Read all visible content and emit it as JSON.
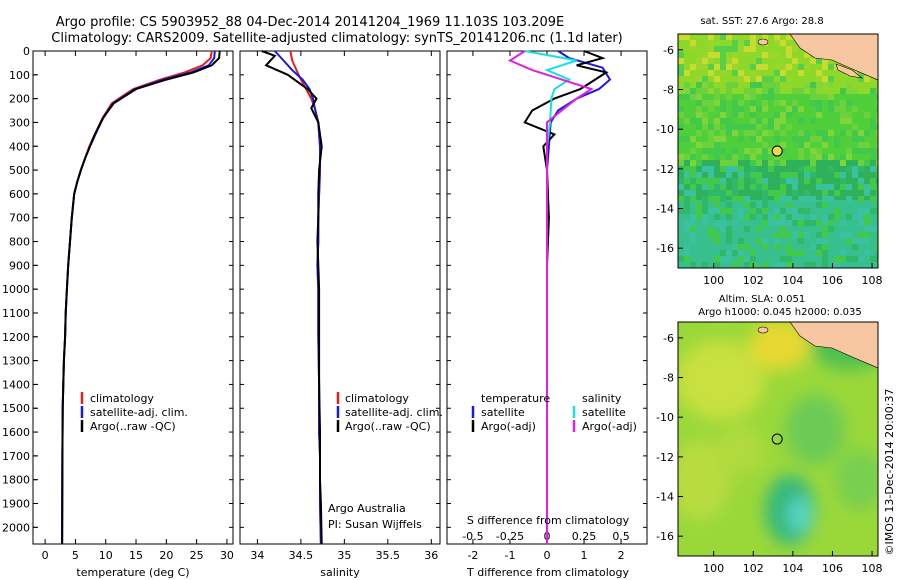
{
  "header": {
    "line1": "Argo profile: CS 5903952_88 04-Dec-2014 20141204_1969 11.103S 103.209E",
    "line2": "Climatology: CARS2009. Satellite-adjusted climatology: synTS_20141206.nc (1.1d later)"
  },
  "colors": {
    "climatology": "#e02020",
    "satellite": "#1a1adb",
    "argo": "#000000",
    "satellite_salinity": "#19e0e0",
    "argo_salinity": "#e020e0"
  },
  "depth_axis": {
    "ticks": [
      "0",
      "100",
      "200",
      "300",
      "400",
      "500",
      "600",
      "700",
      "800",
      "900",
      "1000",
      "1100",
      "1200",
      "1300",
      "1400",
      "1500",
      "1600",
      "1700",
      "1800",
      "1900",
      "2000"
    ],
    "range": [
      0,
      2070
    ]
  },
  "panels": {
    "temperature": {
      "xlabel": "temperature (deg C)",
      "xticks": [
        "0",
        "5",
        "10",
        "15",
        "20",
        "25",
        "30"
      ],
      "legend": [
        "climatology",
        "satellite-adj. clim.",
        "Argo(..raw -QC)"
      ]
    },
    "salinity": {
      "xlabel": "salinity",
      "xticks": [
        "34",
        "34.5",
        "35",
        "35.5",
        "36"
      ],
      "legend": [
        "climatology",
        "satellite-adj. clim.",
        "Argo(..raw -QC)"
      ],
      "note1": "Argo Australia",
      "note2": "PI: Susan Wijffels"
    },
    "difference": {
      "top_label": "S difference from climatology",
      "top_ticks": [
        "-0.5",
        "-0.25",
        "0",
        "0.25",
        "0.5"
      ],
      "xlabel": "T difference from climatology",
      "xticks": [
        "-2",
        "-1",
        "0",
        "1",
        "2"
      ],
      "legend_temp_title": "temperature",
      "legend_sal_title": "salinity",
      "legend_satellite": "satellite",
      "legend_argo": "Argo(-adj)"
    }
  },
  "maps": {
    "sst": {
      "title": "sat. SST: 27.6 Argo: 28.8",
      "yticks": [
        "-6",
        "-8",
        "-10",
        "-12",
        "-14",
        "-16"
      ],
      "xticks": [
        "100",
        "102",
        "104",
        "106",
        "108"
      ]
    },
    "sla": {
      "title1": "Altim. SLA: 0.051",
      "title2": "Argo h1000: 0.045 h2000: 0.035",
      "yticks": [
        "-6",
        "-8",
        "-10",
        "-12",
        "-14",
        "-16"
      ],
      "xticks": [
        "100",
        "102",
        "104",
        "106",
        "108"
      ]
    },
    "float_position": {
      "lon": 103.209,
      "lat": -11.103
    }
  },
  "credit": "©IMOS 13-Dec-2014 20:00:37",
  "chart_data": [
    {
      "type": "line",
      "title": "",
      "xlabel": "temperature (deg C)",
      "ylabel": "",
      "xlim": [
        -2,
        31
      ],
      "ylim": [
        2070,
        0
      ],
      "series": [
        {
          "name": "climatology",
          "x": [
            27.5,
            27.3,
            26.0,
            23.0,
            19.0,
            14.5,
            11.0,
            9.5,
            8.2,
            7.3,
            6.6,
            5.9,
            5.3,
            4.8,
            4.4,
            4.1,
            3.8,
            3.6,
            3.4,
            3.3,
            3.1,
            3.0,
            2.9,
            2.85,
            2.8
          ],
          "y": [
            0,
            30,
            60,
            90,
            120,
            160,
            220,
            280,
            350,
            400,
            450,
            500,
            550,
            600,
            700,
            800,
            900,
            1000,
            1100,
            1200,
            1300,
            1400,
            1500,
            1700,
            2070
          ]
        },
        {
          "name": "satellite-adj. clim.",
          "x": [
            28.0,
            27.9,
            27.0,
            24.0,
            19.5,
            14.8,
            11.2,
            9.6,
            8.3,
            7.4,
            6.6,
            5.9,
            5.3,
            4.8,
            4.4,
            4.1,
            3.8,
            3.6,
            3.4,
            3.3,
            3.1,
            3.0,
            2.9,
            2.85,
            2.8
          ],
          "y": [
            0,
            30,
            60,
            90,
            120,
            160,
            220,
            280,
            350,
            400,
            450,
            500,
            550,
            600,
            700,
            800,
            900,
            1000,
            1100,
            1200,
            1300,
            1400,
            1500,
            1700,
            2070
          ]
        },
        {
          "name": "Argo(..raw -QC)",
          "x": [
            28.8,
            28.7,
            27.5,
            24.5,
            20.0,
            15.0,
            11.3,
            9.6,
            8.2,
            7.4,
            6.6,
            5.9,
            5.3,
            4.8,
            4.4,
            4.1,
            3.8,
            3.6,
            3.4,
            3.3,
            3.1,
            3.0,
            2.9,
            2.85,
            2.8
          ],
          "y": [
            0,
            30,
            60,
            90,
            120,
            160,
            220,
            280,
            350,
            400,
            450,
            500,
            550,
            600,
            700,
            800,
            900,
            1000,
            1100,
            1200,
            1300,
            1400,
            1500,
            1700,
            2070
          ]
        }
      ]
    },
    {
      "type": "line",
      "title": "",
      "xlabel": "salinity",
      "ylabel": "",
      "xlim": [
        33.8,
        36.1
      ],
      "ylim": [
        2070,
        0
      ],
      "series": [
        {
          "name": "climatology",
          "x": [
            34.38,
            34.4,
            34.45,
            34.5,
            34.56,
            34.62,
            34.66,
            34.7,
            34.72,
            34.72,
            34.71,
            34.7,
            34.7,
            34.69,
            34.7,
            34.7,
            34.71,
            34.71,
            34.72,
            34.72,
            34.72,
            34.73
          ],
          "y": [
            0,
            40,
            80,
            120,
            160,
            200,
            240,
            300,
            400,
            500,
            600,
            700,
            800,
            900,
            1000,
            1200,
            1400,
            1600,
            1700,
            1800,
            1900,
            2070
          ]
        },
        {
          "name": "satellite-adj. clim.",
          "x": [
            34.2,
            34.3,
            34.4,
            34.52,
            34.6,
            34.64,
            34.66,
            34.7,
            34.72,
            34.72,
            34.71,
            34.7,
            34.7,
            34.69,
            34.7,
            34.7,
            34.71,
            34.71,
            34.72,
            34.72,
            34.72,
            34.73
          ],
          "y": [
            0,
            40,
            80,
            120,
            160,
            200,
            240,
            300,
            400,
            500,
            600,
            700,
            800,
            900,
            1000,
            1200,
            1400,
            1600,
            1700,
            1800,
            1900,
            2070
          ]
        },
        {
          "name": "Argo(..raw -QC)",
          "x": [
            34.05,
            34.2,
            34.1,
            34.35,
            34.5,
            34.58,
            34.68,
            34.62,
            34.7,
            34.74,
            34.71,
            34.7,
            34.7,
            34.69,
            34.7,
            34.71,
            34.71,
            34.71,
            34.72,
            34.72,
            34.73,
            34.74
          ],
          "y": [
            0,
            20,
            60,
            100,
            140,
            160,
            200,
            240,
            300,
            400,
            500,
            600,
            700,
            800,
            900,
            1000,
            1200,
            1400,
            1600,
            1800,
            1900,
            2070
          ]
        }
      ]
    },
    {
      "type": "line",
      "title": "",
      "xlabel": "T difference from climatology",
      "ylabel": "",
      "xlim": [
        -2.7,
        2.7
      ],
      "ylim": [
        2070,
        0
      ],
      "series": [
        {
          "name": "temperature satellite",
          "x": [
            0.3,
            0.6,
            1.5,
            1.7,
            1.4,
            0.8,
            0.3,
            0.1,
            0.05,
            0.0,
            0.0,
            0.0,
            0.0,
            0.0,
            0.0,
            0.0
          ],
          "y": [
            0,
            30,
            70,
            120,
            160,
            200,
            250,
            300,
            400,
            500,
            700,
            900,
            1200,
            1500,
            1800,
            2070
          ]
        },
        {
          "name": "temperature Argo(-adj)",
          "x": [
            1.0,
            1.5,
            0.8,
            1.6,
            1.3,
            0.9,
            0.2,
            -0.4,
            -0.6,
            0.2,
            -0.1,
            0.0,
            0.05,
            0.0,
            0.0,
            0.0,
            0.0
          ],
          "y": [
            0,
            30,
            60,
            90,
            120,
            160,
            200,
            250,
            300,
            350,
            400,
            500,
            700,
            900,
            1200,
            1600,
            2070
          ]
        },
        {
          "name": "salinity satellite",
          "x": [
            -0.15,
            0.2,
            0.0,
            0.15,
            0.05,
            0.03,
            0.02,
            0.0,
            0.0,
            0.0,
            0.0,
            0.0,
            0.0,
            0.0
          ],
          "y": [
            0,
            40,
            80,
            120,
            160,
            200,
            300,
            400,
            500,
            700,
            900,
            1200,
            1600,
            2070
          ]
        },
        {
          "name": "salinity Argo(-adj)",
          "x": [
            -0.15,
            -0.25,
            -0.1,
            0.3,
            0.2,
            0.0,
            0.0,
            0.0,
            0.0,
            0.0,
            0.0,
            0.0,
            0.0
          ],
          "y": [
            0,
            40,
            80,
            160,
            200,
            300,
            400,
            500,
            700,
            900,
            1200,
            1600,
            2070
          ]
        }
      ]
    }
  ]
}
